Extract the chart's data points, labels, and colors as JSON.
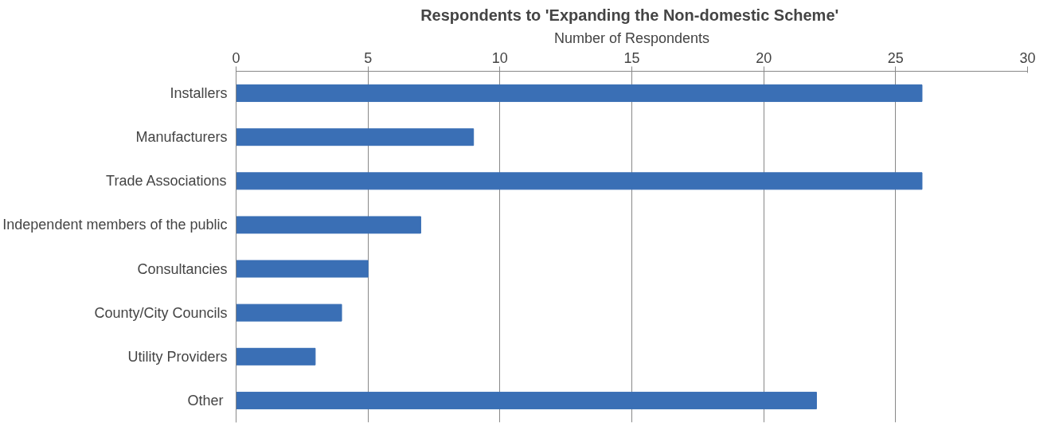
{
  "chart_data": {
    "type": "bar",
    "orientation": "horizontal",
    "title": "Respondents to  'Expanding the Non-domestic Scheme'",
    "xlabel": "Number of Respondents",
    "categories": [
      "Installers",
      "Manufacturers",
      "Trade Associations",
      "Independent members of the public",
      "Consultancies",
      "County/City Councils",
      "Utility Providers",
      "Other "
    ],
    "values": [
      26,
      9,
      26,
      7,
      5,
      4,
      3,
      22
    ],
    "color": "#3a6fb5",
    "xlim": [
      0,
      30
    ],
    "xticks": [
      0,
      5,
      10,
      15,
      20,
      25,
      30
    ],
    "grid": "x"
  }
}
